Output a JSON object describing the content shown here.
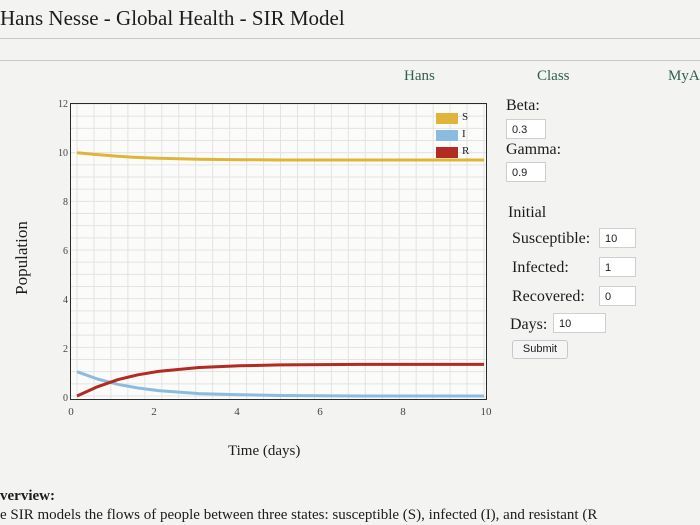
{
  "page": {
    "title": "Hans Nesse - Global Health - SIR Model"
  },
  "nav": {
    "items": [
      "Hans",
      "Class",
      "MyA"
    ]
  },
  "form": {
    "beta_label": "Beta:",
    "beta_value": "0.3",
    "gamma_label": "Gamma:",
    "gamma_value": "0.9",
    "initial_label": "Initial",
    "susceptible_label": "Susceptible:",
    "susceptible_value": "10",
    "infected_label": "Infected:",
    "infected_value": "1",
    "recovered_label": "Recovered:",
    "recovered_value": "0",
    "days_label": "Days:",
    "days_value": "10",
    "submit_label": "Submit"
  },
  "overview": {
    "heading": "verview:",
    "text": "e SIR models the flows of people between three states: susceptible (S), infected (I), and resistant (R"
  },
  "chart_data": {
    "type": "line",
    "xlabel": "Time (days)",
    "ylabel": "Population",
    "xlim": [
      0,
      10
    ],
    "ylim": [
      0,
      12
    ],
    "xticks": [
      "0",
      "2",
      "4",
      "6",
      "8",
      "10"
    ],
    "yticks": [
      "0",
      "2",
      "4",
      "6",
      "8",
      "10",
      "12"
    ],
    "legend": "top-right",
    "grid": true,
    "x": [
      0,
      0.5,
      1,
      1.5,
      2,
      3,
      4,
      5,
      6,
      7,
      8,
      9,
      10
    ],
    "series": [
      {
        "name": "S",
        "color": "#e0b43a",
        "values": [
          10,
          9.92,
          9.85,
          9.8,
          9.77,
          9.73,
          9.71,
          9.7,
          9.7,
          9.7,
          9.7,
          9.7,
          9.7
        ]
      },
      {
        "name": "I",
        "color": "#8dbbe0",
        "values": [
          1,
          0.7,
          0.48,
          0.33,
          0.22,
          0.1,
          0.05,
          0.02,
          0.01,
          0.0,
          0.0,
          0.0,
          0.0
        ]
      },
      {
        "name": "R",
        "color": "#b22a22",
        "values": [
          0,
          0.38,
          0.67,
          0.87,
          1.01,
          1.17,
          1.24,
          1.28,
          1.29,
          1.3,
          1.3,
          1.3,
          1.3
        ]
      }
    ]
  }
}
